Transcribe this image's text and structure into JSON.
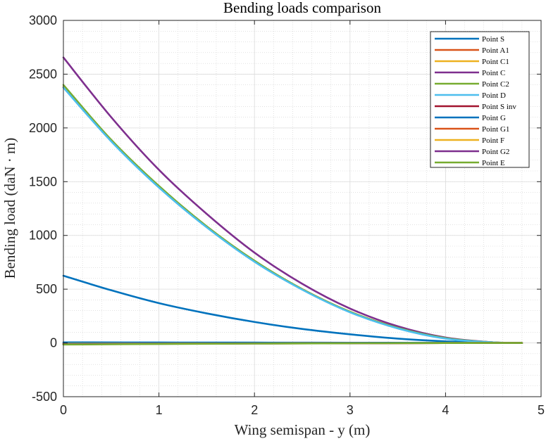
{
  "chart_data": {
    "type": "line",
    "title": "Bending loads comparison",
    "xlabel": "Wing semispan - y (m)",
    "ylabel": "Bending load (daN · m)",
    "xlim": [
      0,
      5
    ],
    "ylim": [
      -500,
      3000
    ],
    "xticks": [
      0,
      1,
      2,
      3,
      4,
      5
    ],
    "yticks": [
      -500,
      0,
      500,
      1000,
      1500,
      2000,
      2500,
      3000
    ],
    "grid": true,
    "minor_grid": true,
    "legend_position": "top-right",
    "series": [
      {
        "name": "Point S",
        "color": "#0072BD",
        "x": [
          0,
          0.5,
          1,
          1.5,
          2,
          2.5,
          3,
          3.5,
          4,
          4.5,
          4.8
        ],
        "y": [
          625,
          490,
          370,
          275,
          195,
          130,
          80,
          40,
          15,
          3,
          0
        ]
      },
      {
        "name": "Point A1",
        "color": "#D95319",
        "x": [
          0,
          0.5,
          1,
          1.5,
          2,
          2.5,
          3,
          3.5,
          4,
          4.5,
          4.8
        ],
        "y": [
          2380,
          1880,
          1450,
          1080,
          760,
          500,
          290,
          140,
          45,
          5,
          0
        ]
      },
      {
        "name": "Point C1",
        "color": "#EDB120",
        "x": [
          0,
          0.5,
          1,
          1.5,
          2,
          2.5,
          3,
          3.5,
          4,
          4.5,
          4.8
        ],
        "y": [
          2380,
          1880,
          1450,
          1080,
          760,
          500,
          290,
          140,
          45,
          5,
          0
        ]
      },
      {
        "name": "Point C",
        "color": "#7E2F8E",
        "x": [
          0,
          0.5,
          1,
          1.5,
          2,
          2.5,
          3,
          3.5,
          4,
          4.5,
          4.8
        ],
        "y": [
          2655,
          2100,
          1610,
          1200,
          840,
          550,
          320,
          155,
          50,
          5,
          0
        ]
      },
      {
        "name": "Point C2",
        "color": "#77AC30",
        "x": [
          0,
          0.5,
          1,
          1.5,
          2,
          2.5,
          3,
          3.5,
          4,
          4.5,
          4.8
        ],
        "y": [
          2400,
          1890,
          1460,
          1085,
          765,
          500,
          290,
          140,
          45,
          5,
          0
        ]
      },
      {
        "name": "Point D",
        "color": "#4DBEEE",
        "x": [
          0,
          0.5,
          1,
          1.5,
          2,
          2.5,
          3,
          3.5,
          4,
          4.5,
          4.8
        ],
        "y": [
          2375,
          1875,
          1445,
          1075,
          755,
          495,
          285,
          135,
          40,
          5,
          0
        ]
      },
      {
        "name": "Point S inv",
        "color": "#A2142F",
        "x": [
          0,
          1,
          2,
          3,
          4,
          4.8
        ],
        "y": [
          -5,
          -4,
          -3,
          -2,
          -1,
          0
        ]
      },
      {
        "name": "Point G",
        "color": "#0072BD",
        "x": [
          0,
          1,
          2,
          3,
          4,
          4.8
        ],
        "y": [
          5,
          4,
          3,
          2,
          1,
          0
        ]
      },
      {
        "name": "Point G1",
        "color": "#D95319",
        "x": [
          0,
          1,
          2,
          3,
          4,
          4.8
        ],
        "y": [
          -10,
          -7,
          -5,
          -3,
          -1,
          0
        ]
      },
      {
        "name": "Point F",
        "color": "#EDB120",
        "x": [
          0,
          1,
          2,
          3,
          4,
          4.8
        ],
        "y": [
          -8,
          -6,
          -4,
          -2,
          -1,
          0
        ]
      },
      {
        "name": "Point G2",
        "color": "#7E2F8E",
        "x": [
          0,
          1,
          2,
          3,
          4,
          4.8
        ],
        "y": [
          -12,
          -8,
          -5,
          -3,
          -1,
          0
        ]
      },
      {
        "name": "Point E",
        "color": "#77AC30",
        "x": [
          0,
          1,
          2,
          3,
          4,
          4.8
        ],
        "y": [
          -15,
          -10,
          -6,
          -3,
          -1,
          0
        ]
      }
    ]
  }
}
